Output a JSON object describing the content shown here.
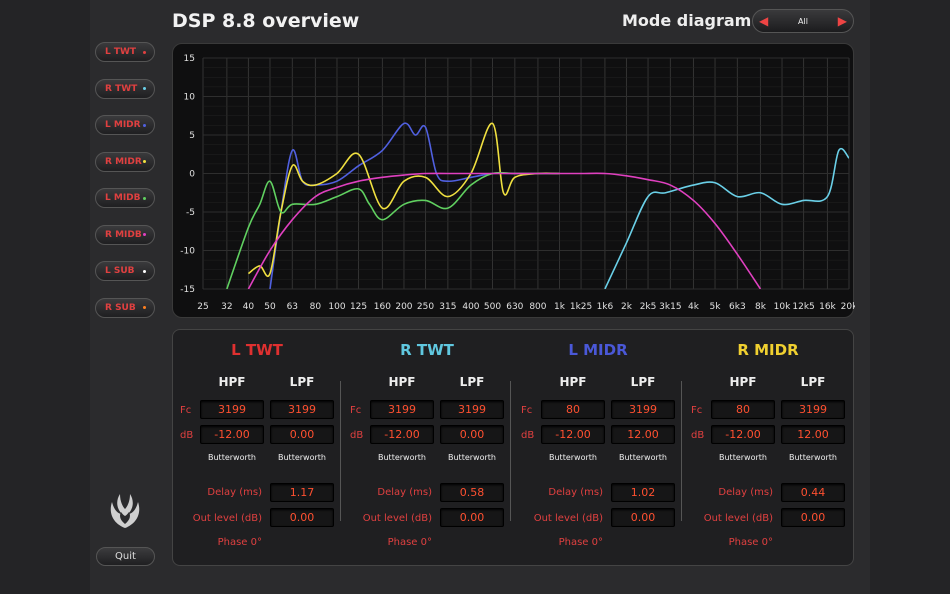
{
  "app": {
    "title": "DSP 8.8 overview",
    "mode_label": "Mode diagram",
    "mode_value": "All",
    "quit_label": "Quit"
  },
  "sidebar": {
    "items": [
      {
        "label": "L TWT",
        "dot": "#e04040"
      },
      {
        "label": "R TWT",
        "dot": "#6ad0e8"
      },
      {
        "label": "L MIDR",
        "dot": "#5060e0"
      },
      {
        "label": "R MIDR",
        "dot": "#f0e040"
      },
      {
        "label": "L MIDB",
        "dot": "#60d060"
      },
      {
        "label": "R MIDB",
        "dot": "#e040c0"
      },
      {
        "label": "L SUB",
        "dot": "#ffffff"
      },
      {
        "label": "R SUB",
        "dot": "#ff8020"
      }
    ]
  },
  "chart_data": {
    "type": "line",
    "y_ticks": [
      "15",
      "10",
      "5",
      "0",
      "-5",
      "-10",
      "-15"
    ],
    "ylim": [
      -15,
      15
    ],
    "x_ticks": [
      "25",
      "32",
      "40",
      "50",
      "63",
      "80",
      "100",
      "125",
      "160",
      "200",
      "250",
      "315",
      "400",
      "500",
      "630",
      "800",
      "1k",
      "1k25",
      "1k6",
      "2k",
      "2k5",
      "3k15",
      "4k",
      "5k",
      "6k3",
      "8k",
      "10k",
      "12k5",
      "16k",
      "20k"
    ],
    "grid": true,
    "series": [
      {
        "color": "#6ad0e8",
        "x": [
          1600,
          2000,
          2500,
          3000,
          4000,
          5000,
          6300,
          8000,
          10000,
          12500,
          16000,
          18000,
          20000
        ],
        "y": [
          -15,
          -9,
          -3,
          -2.5,
          -1.5,
          -1.2,
          -3,
          -2.5,
          -4,
          -3.5,
          -3,
          3,
          2
        ]
      },
      {
        "color": "#5060e0",
        "x": [
          50,
          56,
          63,
          70,
          80,
          100,
          125,
          160,
          200,
          225,
          250,
          280,
          315,
          400,
          500,
          630,
          800,
          1000
        ],
        "y": [
          -15,
          -5,
          3,
          -1,
          -1.5,
          -1,
          1,
          3,
          6.5,
          5,
          6,
          0,
          -1,
          -0.5,
          0,
          0,
          0,
          0
        ]
      },
      {
        "color": "#f0e040",
        "x": [
          40,
          45,
          50,
          56,
          63,
          70,
          80,
          100,
          125,
          160,
          200,
          250,
          315,
          400,
          500,
          560,
          630,
          800,
          1000
        ],
        "y": [
          -13,
          -12,
          -13,
          -5,
          1,
          -1,
          -1.5,
          0,
          2.5,
          -4.5,
          -1,
          -0.5,
          -3,
          0,
          6.5,
          -2.5,
          -0.5,
          0,
          0
        ]
      },
      {
        "color": "#60d060",
        "x": [
          32,
          40,
          45,
          50,
          56,
          63,
          80,
          100,
          125,
          140,
          160,
          200,
          250,
          315,
          400,
          500,
          630,
          800,
          1000
        ],
        "y": [
          -15,
          -7,
          -4,
          -1,
          -5,
          -4,
          -4,
          -3,
          -2,
          -4,
          -6,
          -4,
          -3.5,
          -4.5,
          -1.5,
          0,
          0,
          0,
          0
        ]
      },
      {
        "color": "#e040c0",
        "x": [
          40,
          50,
          63,
          80,
          100,
          125,
          160,
          200,
          250,
          315,
          400,
          500,
          630,
          800,
          1000,
          1250,
          1600,
          2000,
          2500,
          3150,
          4000,
          5000,
          6300,
          8000
        ],
        "y": [
          -15,
          -10,
          -6,
          -3,
          -1.8,
          -1,
          -0.5,
          -0.2,
          0,
          0,
          0,
          0,
          0,
          0,
          0,
          0,
          0,
          -0.3,
          -0.8,
          -1.5,
          -3.5,
          -6.5,
          -10.5,
          -15
        ]
      }
    ]
  },
  "channels": [
    {
      "name": "L TWT",
      "color": "#e03030",
      "hpf_fc": "3199",
      "lpf_fc": "3199",
      "hpf_db": "-12.00",
      "lpf_db": "0.00",
      "hpf_type": "Butterworth",
      "lpf_type": "Butterworth",
      "delay": "1.17",
      "out_level": "0.00"
    },
    {
      "name": "R TWT",
      "color": "#60c8e0",
      "hpf_fc": "3199",
      "lpf_fc": "3199",
      "hpf_db": "-12.00",
      "lpf_db": "0.00",
      "hpf_type": "Butterworth",
      "lpf_type": "Butterworth",
      "delay": "0.58",
      "out_level": "0.00"
    },
    {
      "name": "L MIDR",
      "color": "#4a58d8",
      "hpf_fc": "80",
      "lpf_fc": "3199",
      "hpf_db": "-12.00",
      "lpf_db": "12.00",
      "hpf_type": "Butterworth",
      "lpf_type": "Butterworth",
      "delay": "1.02",
      "out_level": "0.00"
    },
    {
      "name": "R MIDR",
      "color": "#f0d030",
      "hpf_fc": "80",
      "lpf_fc": "3199",
      "hpf_db": "-12.00",
      "lpf_db": "12.00",
      "hpf_type": "Butterworth",
      "lpf_type": "Butterworth",
      "delay": "0.44",
      "out_level": "0.00"
    }
  ],
  "labels": {
    "hpf": "HPF",
    "lpf": "LPF",
    "fc": "Fc",
    "db": "dB",
    "delay": "Delay (ms)",
    "out_level": "Out level (dB)",
    "phase": "Phase 0°"
  }
}
